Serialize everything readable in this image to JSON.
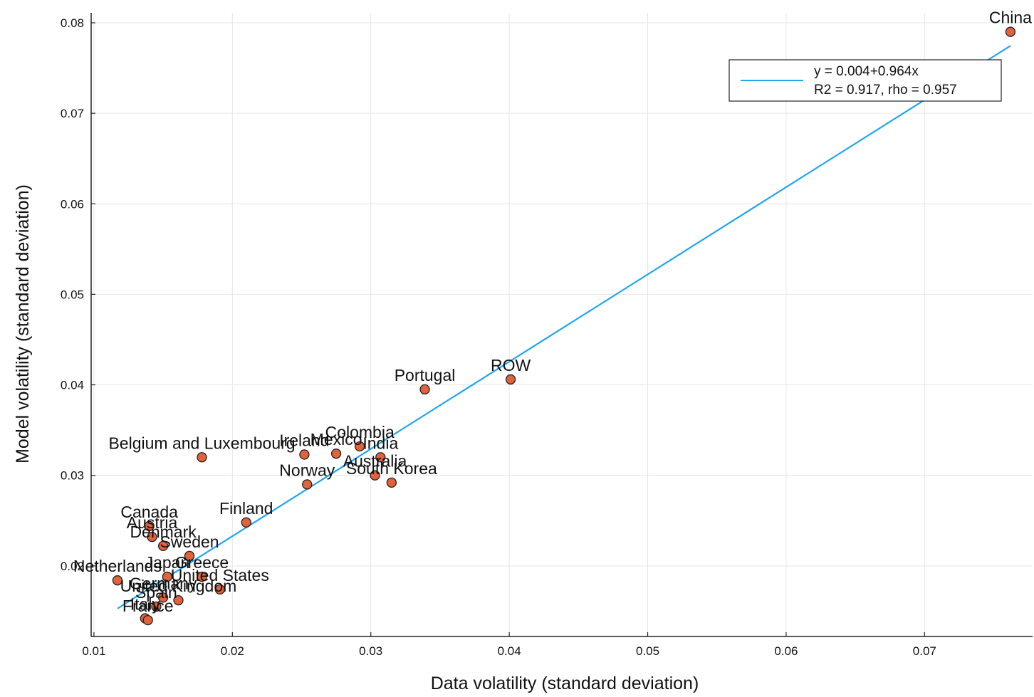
{
  "chart_data": {
    "type": "scatter",
    "xlabel": "Data volatility (standard deviation)",
    "ylabel": "Model volatility (standard deviation)",
    "xlim": [
      0.0098,
      0.0778
    ],
    "ylim": [
      0.0122,
      0.0811
    ],
    "xticks": [
      0.01,
      0.02,
      0.03,
      0.04,
      0.05,
      0.06,
      0.07
    ],
    "yticks": [
      0.02,
      0.03,
      0.04,
      0.05,
      0.06,
      0.07,
      0.08
    ],
    "xtick_labels": [
      "0.01",
      "0.02",
      "0.03",
      "0.04",
      "0.05",
      "0.06",
      "0.07"
    ],
    "ytick_labels": [
      "0.02",
      "0.03",
      "0.04",
      "0.05",
      "0.06",
      "0.07",
      "0.08"
    ],
    "grid": true,
    "legend_position": "top-right",
    "point_color": "#e2623b",
    "line_color": "#1ea6f0",
    "fit_line": {
      "intercept": 0.004,
      "slope": 0.964,
      "x_range": [
        0.0117,
        0.0762
      ]
    },
    "legend": {
      "line1": "y = 0.004+0.964x",
      "line2": "R2 = 0.917, rho = 0.957"
    },
    "points": [
      {
        "label": "China",
        "x": 0.0762,
        "y": 0.079
      },
      {
        "label": "ROW",
        "x": 0.0401,
        "y": 0.0406
      },
      {
        "label": "Portugal",
        "x": 0.0339,
        "y": 0.0395
      },
      {
        "label": "Colombia",
        "x": 0.0292,
        "y": 0.0332
      },
      {
        "label": "India",
        "x": 0.0307,
        "y": 0.032
      },
      {
        "label": "Mexico",
        "x": 0.0275,
        "y": 0.0324
      },
      {
        "label": "Ireland",
        "x": 0.0252,
        "y": 0.0323
      },
      {
        "label": "Belgium and Luxembourg",
        "x": 0.0178,
        "y": 0.032
      },
      {
        "label": "Australia",
        "x": 0.0303,
        "y": 0.03
      },
      {
        "label": "South Korea",
        "x": 0.0315,
        "y": 0.0292
      },
      {
        "label": "Norway",
        "x": 0.0254,
        "y": 0.029
      },
      {
        "label": "Finland",
        "x": 0.021,
        "y": 0.0248
      },
      {
        "label": "Canada",
        "x": 0.014,
        "y": 0.0244
      },
      {
        "label": "Austria",
        "x": 0.0142,
        "y": 0.0232
      },
      {
        "label": "Denmark",
        "x": 0.015,
        "y": 0.0222
      },
      {
        "label": "Sweden",
        "x": 0.0169,
        "y": 0.0211
      },
      {
        "label": "Netherlands",
        "x": 0.0117,
        "y": 0.0184
      },
      {
        "label": "Japan",
        "x": 0.0153,
        "y": 0.0188
      },
      {
        "label": "Greece",
        "x": 0.0178,
        "y": 0.0188
      },
      {
        "label": "United States",
        "x": 0.0191,
        "y": 0.0174
      },
      {
        "label": "Germany",
        "x": 0.015,
        "y": 0.0165
      },
      {
        "label": "United Kingdom",
        "x": 0.0161,
        "y": 0.0162
      },
      {
        "label": "Spain",
        "x": 0.0145,
        "y": 0.0155
      },
      {
        "label": "Italy",
        "x": 0.0137,
        "y": 0.0142
      },
      {
        "label": "France",
        "x": 0.0139,
        "y": 0.014
      }
    ]
  }
}
